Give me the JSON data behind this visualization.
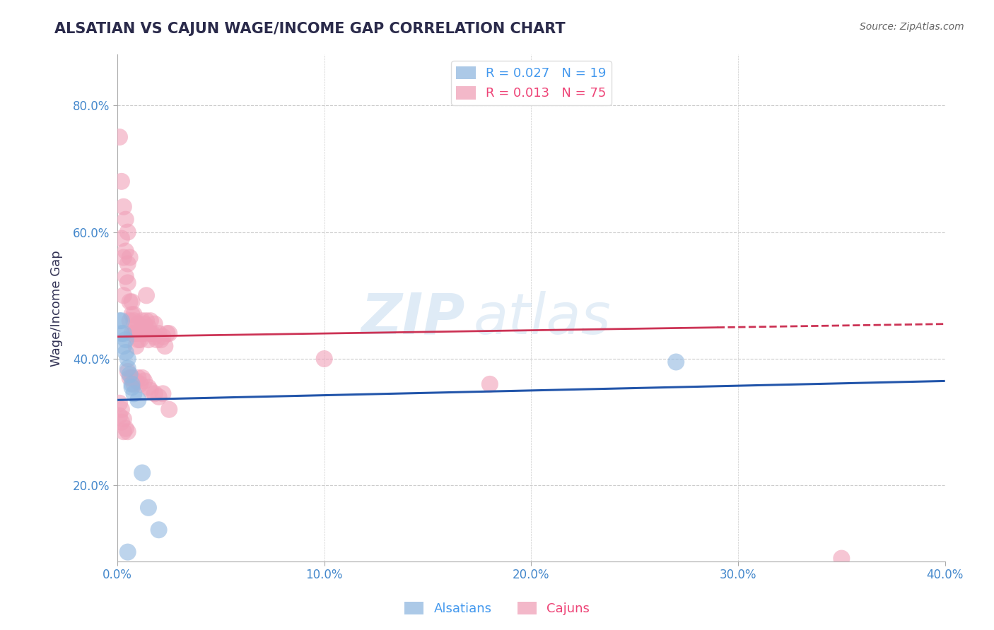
{
  "title": "ALSATIAN VS CAJUN WAGE/INCOME GAP CORRELATION CHART",
  "source": "Source: ZipAtlas.com",
  "ylabel": "Wage/Income Gap",
  "xlim": [
    0.0,
    0.4
  ],
  "ylim": [
    0.08,
    0.88
  ],
  "xtick_labels": [
    "0.0%",
    "10.0%",
    "20.0%",
    "30.0%",
    "40.0%"
  ],
  "xtick_values": [
    0.0,
    0.1,
    0.2,
    0.3,
    0.4
  ],
  "ytick_labels": [
    "20.0%",
    "40.0%",
    "60.0%",
    "80.0%"
  ],
  "ytick_values": [
    0.2,
    0.4,
    0.6,
    0.8
  ],
  "watermark_text": "ZIP",
  "watermark_text2": "atlas",
  "alsatian_color": "#91b8e0",
  "cajun_color": "#f0a0b8",
  "alsatian_line_color": "#2255aa",
  "cajun_line_color": "#cc3355",
  "background_color": "#ffffff",
  "grid_color": "#cccccc",
  "title_color": "#2a2a4a",
  "legend_label_alsatian": "R = 0.027   N = 19",
  "legend_label_cajun": "R = 0.013   N = 75",
  "legend_color_alsatian": "#4499ee",
  "legend_color_cajun": "#ee4477",
  "bottom_legend_alsatians": "Alsatians",
  "bottom_legend_cajuns": "Cajuns",
  "alsatian_points": [
    [
      0.001,
      0.46
    ],
    [
      0.002,
      0.46
    ],
    [
      0.002,
      0.44
    ],
    [
      0.003,
      0.44
    ],
    [
      0.003,
      0.42
    ],
    [
      0.004,
      0.43
    ],
    [
      0.004,
      0.41
    ],
    [
      0.005,
      0.4
    ],
    [
      0.005,
      0.385
    ],
    [
      0.006,
      0.375
    ],
    [
      0.007,
      0.36
    ],
    [
      0.007,
      0.355
    ],
    [
      0.008,
      0.345
    ],
    [
      0.01,
      0.335
    ],
    [
      0.012,
      0.22
    ],
    [
      0.015,
      0.165
    ],
    [
      0.02,
      0.13
    ],
    [
      0.27,
      0.395
    ],
    [
      0.005,
      0.095
    ]
  ],
  "cajun_points": [
    [
      0.001,
      0.75
    ],
    [
      0.002,
      0.68
    ],
    [
      0.003,
      0.64
    ],
    [
      0.004,
      0.57
    ],
    [
      0.005,
      0.6
    ],
    [
      0.004,
      0.62
    ],
    [
      0.002,
      0.59
    ],
    [
      0.003,
      0.56
    ],
    [
      0.004,
      0.53
    ],
    [
      0.005,
      0.55
    ],
    [
      0.006,
      0.56
    ],
    [
      0.003,
      0.5
    ],
    [
      0.005,
      0.52
    ],
    [
      0.006,
      0.49
    ],
    [
      0.007,
      0.49
    ],
    [
      0.006,
      0.46
    ],
    [
      0.007,
      0.47
    ],
    [
      0.008,
      0.47
    ],
    [
      0.007,
      0.44
    ],
    [
      0.008,
      0.46
    ],
    [
      0.009,
      0.45
    ],
    [
      0.008,
      0.44
    ],
    [
      0.009,
      0.42
    ],
    [
      0.009,
      0.44
    ],
    [
      0.01,
      0.44
    ],
    [
      0.01,
      0.43
    ],
    [
      0.011,
      0.43
    ],
    [
      0.01,
      0.455
    ],
    [
      0.011,
      0.445
    ],
    [
      0.012,
      0.46
    ],
    [
      0.012,
      0.44
    ],
    [
      0.013,
      0.455
    ],
    [
      0.013,
      0.44
    ],
    [
      0.014,
      0.5
    ],
    [
      0.014,
      0.46
    ],
    [
      0.015,
      0.45
    ],
    [
      0.015,
      0.43
    ],
    [
      0.016,
      0.46
    ],
    [
      0.016,
      0.44
    ],
    [
      0.017,
      0.44
    ],
    [
      0.018,
      0.455
    ],
    [
      0.018,
      0.435
    ],
    [
      0.019,
      0.43
    ],
    [
      0.02,
      0.44
    ],
    [
      0.021,
      0.43
    ],
    [
      0.022,
      0.435
    ],
    [
      0.023,
      0.42
    ],
    [
      0.024,
      0.44
    ],
    [
      0.025,
      0.44
    ],
    [
      0.005,
      0.38
    ],
    [
      0.006,
      0.37
    ],
    [
      0.007,
      0.37
    ],
    [
      0.008,
      0.36
    ],
    [
      0.009,
      0.365
    ],
    [
      0.01,
      0.37
    ],
    [
      0.011,
      0.36
    ],
    [
      0.012,
      0.37
    ],
    [
      0.013,
      0.365
    ],
    [
      0.015,
      0.355
    ],
    [
      0.016,
      0.35
    ],
    [
      0.018,
      0.345
    ],
    [
      0.02,
      0.34
    ],
    [
      0.022,
      0.345
    ],
    [
      0.025,
      0.32
    ],
    [
      0.001,
      0.33
    ],
    [
      0.002,
      0.32
    ],
    [
      0.003,
      0.305
    ],
    [
      0.004,
      0.29
    ],
    [
      0.005,
      0.285
    ],
    [
      0.001,
      0.31
    ],
    [
      0.002,
      0.3
    ],
    [
      0.003,
      0.285
    ],
    [
      0.1,
      0.4
    ],
    [
      0.18,
      0.36
    ],
    [
      0.35,
      0.085
    ]
  ]
}
